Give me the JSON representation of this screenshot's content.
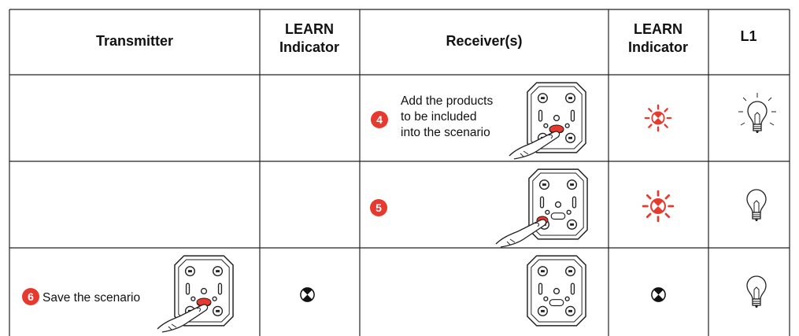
{
  "table": {
    "header": [
      [
        "Transmitter"
      ],
      [
        "LEARN",
        "Indicator"
      ],
      [
        "Receiver(s)"
      ],
      [
        "LEARN",
        "Indicator"
      ],
      [
        "L1"
      ]
    ],
    "rows": [
      {
        "receiver": {
          "step": "4",
          "text": [
            "Add the products",
            "to be included",
            "into the scenario"
          ]
        }
      },
      {
        "receiver": {
          "step": "5"
        }
      },
      {
        "transmitter": {
          "step": "6",
          "text": "Save the scenario"
        }
      }
    ]
  }
}
